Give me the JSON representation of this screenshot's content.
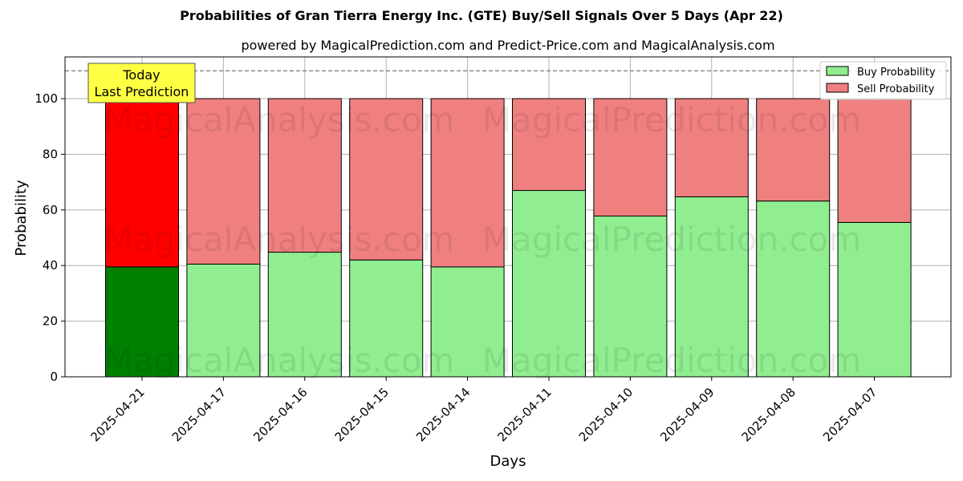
{
  "chart_data": {
    "type": "bar",
    "stacked": true,
    "title": "Probabilities of Gran Tierra Energy Inc. (GTE) Buy/Sell Signals Over 5 Days (Apr 22)",
    "subtitle": "powered by MagicalPrediction.com and Predict-Price.com and MagicalAnalysis.com",
    "xlabel": "Days",
    "ylabel": "Probability",
    "ylim": [
      0,
      115
    ],
    "yticks": [
      0,
      20,
      40,
      60,
      80,
      100
    ],
    "categories": [
      "2025-04-21",
      "2025-04-17",
      "2025-04-16",
      "2025-04-15",
      "2025-04-14",
      "2025-04-11",
      "2025-04-10",
      "2025-04-09",
      "2025-04-08",
      "2025-04-07"
    ],
    "series": [
      {
        "name": "Buy Probability",
        "color": "#90ee90",
        "values": [
          39.5,
          40.5,
          44.8,
          42.0,
          39.5,
          67.0,
          57.8,
          64.7,
          63.2,
          55.5
        ]
      },
      {
        "name": "Sell Probability",
        "color": "#f08080",
        "values": [
          60.5,
          59.5,
          55.2,
          58.0,
          60.5,
          33.0,
          42.2,
          35.3,
          36.8,
          44.5
        ]
      }
    ],
    "highlight": {
      "index": 0,
      "buy_color": "#008000",
      "sell_color": "#ff0000"
    },
    "reference_line": 110,
    "annotation": {
      "line1": "Today",
      "line2": "Last Prediction",
      "background": "#ffff44"
    },
    "watermarks": [
      "MagicalAnalysis.com",
      "MagicalPrediction.com"
    ],
    "grid": true,
    "legend_position": "top-right"
  }
}
